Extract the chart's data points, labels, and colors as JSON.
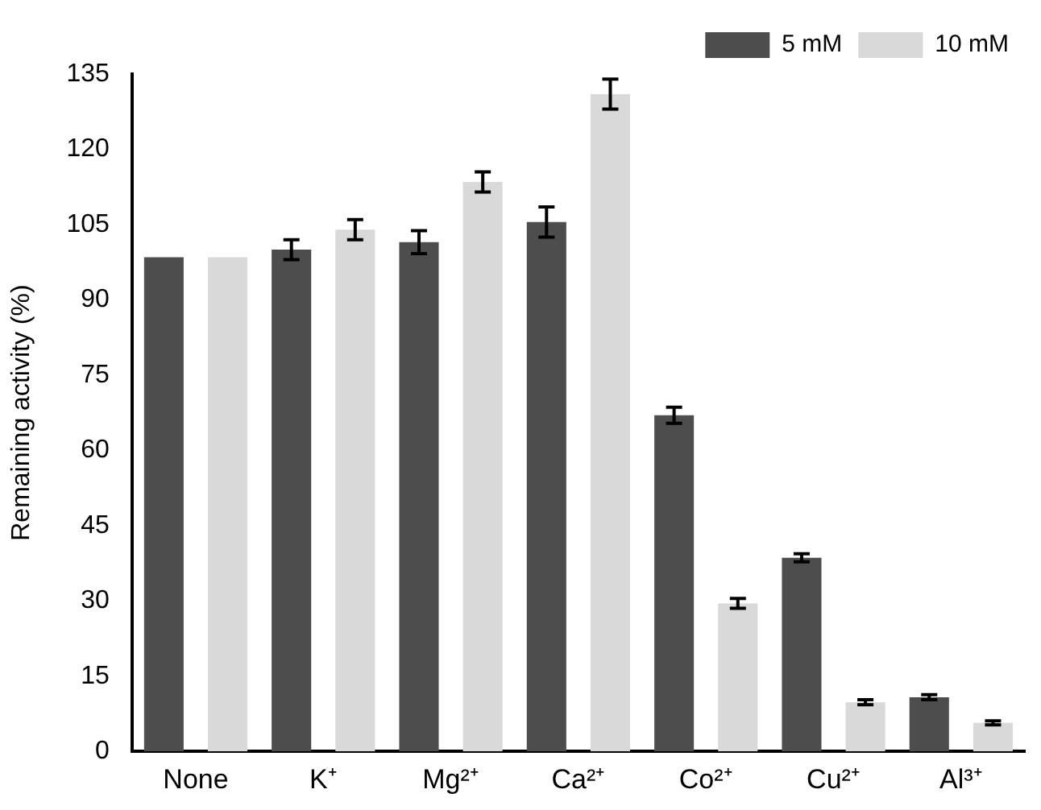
{
  "chart_data": {
    "type": "bar",
    "ylabel": "Remaining activity (%)",
    "categories": [
      "None",
      "K⁺",
      "Mg²⁺",
      "Ca²⁺",
      "Co²⁺",
      "Cu²⁺",
      "Al³⁺"
    ],
    "series": [
      {
        "name": "5 mM",
        "color": "#4d4d4d",
        "values": [
          98.5,
          100,
          101.5,
          105.5,
          67,
          38.6,
          10.8
        ],
        "errors": [
          null,
          2,
          2.3,
          3,
          1.6,
          0.8,
          0.5
        ]
      },
      {
        "name": "10 mM",
        "color": "#d9d9d9",
        "values": [
          98.5,
          104,
          113.5,
          131,
          29.5,
          9.8,
          5.7
        ],
        "errors": [
          null,
          2,
          2,
          3,
          1,
          0.5,
          0.4
        ]
      }
    ],
    "ylim": [
      0,
      135
    ],
    "yticks": [
      0,
      15,
      30,
      45,
      60,
      75,
      90,
      105,
      120,
      135
    ],
    "grid": false,
    "legend": "top right"
  }
}
